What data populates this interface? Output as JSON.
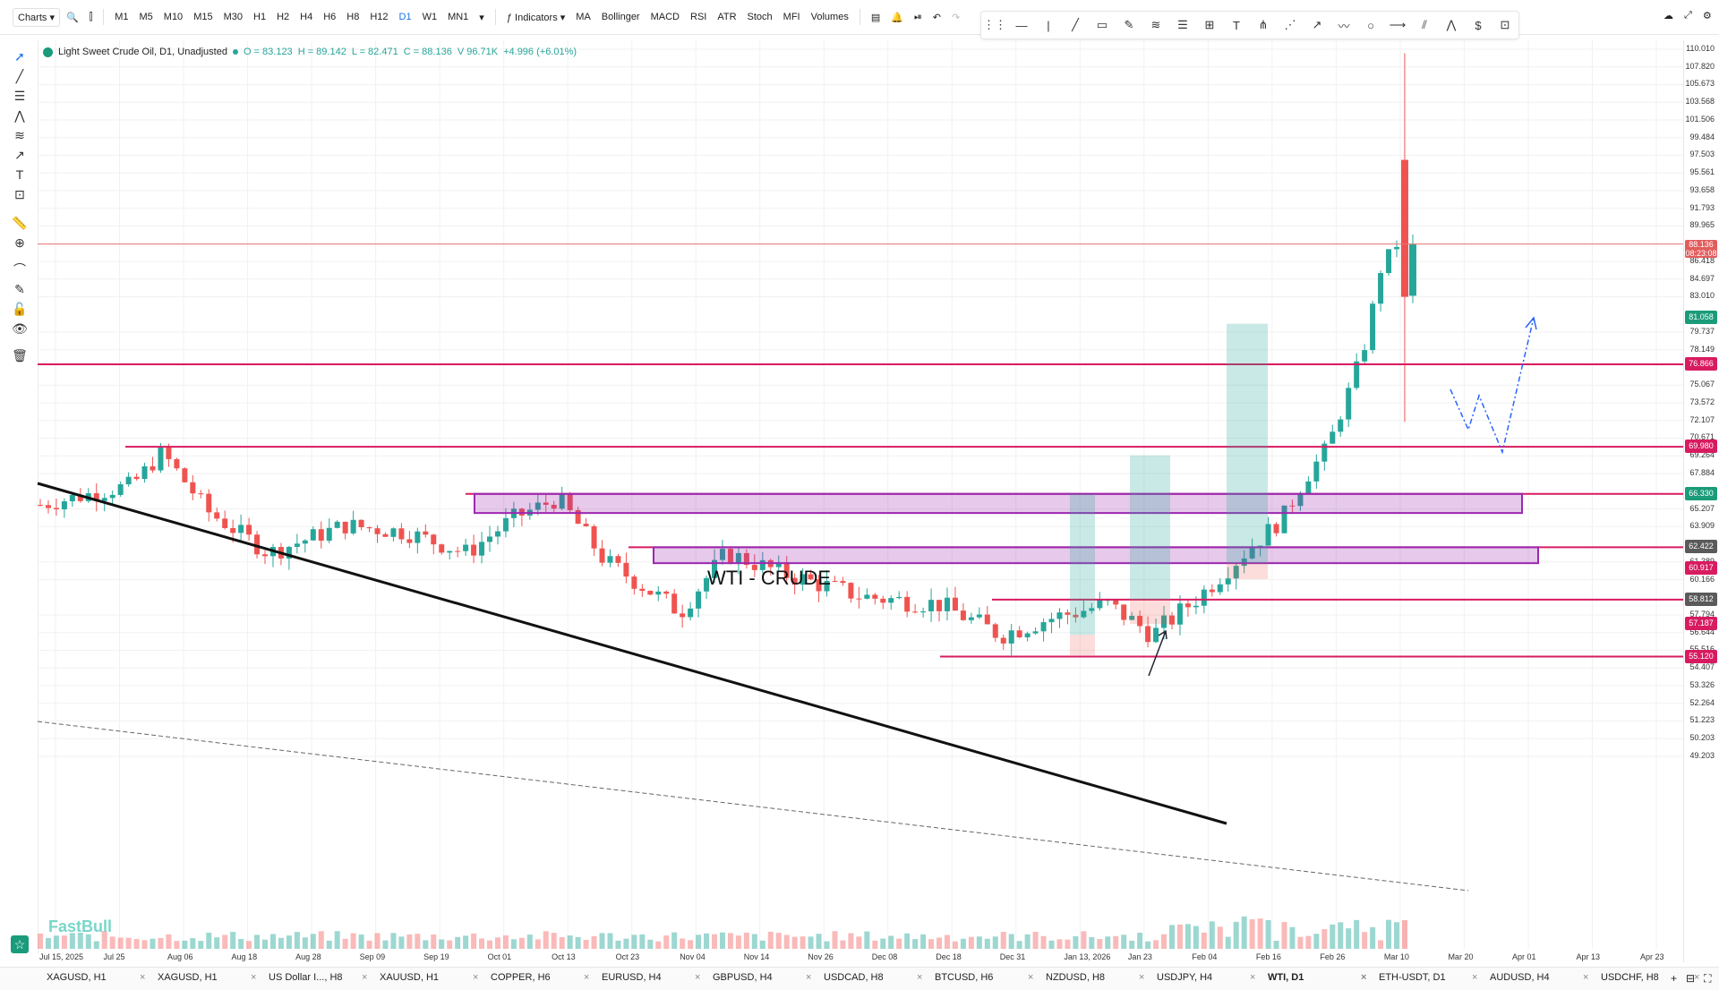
{
  "toolbar": {
    "charts_label": "Charts",
    "timeframes": [
      "M1",
      "M5",
      "M10",
      "M15",
      "M30",
      "H1",
      "H2",
      "H4",
      "H6",
      "H8",
      "H12",
      "D1",
      "W1",
      "MN1"
    ],
    "active_timeframe": "D1",
    "indicators_label": "Indicators",
    "quick_indicators": [
      "MA",
      "Bollinger",
      "MACD",
      "RSI",
      "ATR",
      "Stoch",
      "MFI",
      "Volumes"
    ]
  },
  "legend": {
    "instrument": "Light Sweet Crude Oil, D1, Unadjusted",
    "open": "O = 83.123",
    "high": "H = 89.142",
    "low": "L = 82.471",
    "close": "C = 88.136",
    "volume": "V 96.71K",
    "change": "+4.996 (+6.01%)"
  },
  "chart_title": "WTI - CRUDE",
  "watermark": "FastBull",
  "price_ticks": [
    "110.010",
    "107.820",
    "105.673",
    "103.568",
    "101.506",
    "99.484",
    "97.503",
    "95.561",
    "93.658",
    "91.793",
    "89.965",
    "86.418",
    "84.697",
    "83.010",
    "79.737",
    "78.149",
    "75.067",
    "73.572",
    "72.107",
    "70.671",
    "69.264",
    "67.884",
    "65.207",
    "63.909",
    "61.389",
    "60.166",
    "57.794",
    "56.644",
    "55.516",
    "54.407",
    "53.326",
    "52.264",
    "51.223",
    "50.203",
    "49.203"
  ],
  "price_badges": [
    {
      "value": "88.136",
      "sub": "08:23:08",
      "color": "#e25c5c"
    },
    {
      "value": "81.058",
      "color": "#1a9b7a"
    },
    {
      "value": "76.866",
      "color": "#d81b60"
    },
    {
      "value": "69.980",
      "color": "#d81b60"
    },
    {
      "value": "66.330",
      "color": "#1a9b7a"
    },
    {
      "value": "62.422",
      "color": "#5a5a5a"
    },
    {
      "value": "60.917",
      "color": "#d81b60"
    },
    {
      "value": "58.812",
      "color": "#5a5a5a"
    },
    {
      "value": "57.187",
      "color": "#d81b60"
    },
    {
      "value": "55.120",
      "color": "#d81b60"
    }
  ],
  "time_ticks": [
    "Jul 15, 2025",
    "Jul 25",
    "Aug 06",
    "Aug 18",
    "Aug 28",
    "Sep 09",
    "Sep 19",
    "Oct 01",
    "Oct 13",
    "Oct 23",
    "Nov 04",
    "Nov 14",
    "Nov 26",
    "Dec 08",
    "Dec 18",
    "Dec 31",
    "Jan 13, 2026",
    "Jan 23",
    "Feb 04",
    "Feb 16",
    "Feb 26",
    "Mar 10",
    "Mar 20",
    "Apr 01",
    "Apr 13",
    "Apr 23"
  ],
  "bottom_tabs": [
    "XAGUSD, H1",
    "XAGUSD, H1",
    "US Dollar I..., H8",
    "XAUUSD, H1",
    "COPPER, H6",
    "EURUSD, H4",
    "GBPUSD, H4",
    "USDCAD, H8",
    "BTCUSD, H6",
    "NZDUSD, H8",
    "USDJPY, H4",
    "WTI, D1",
    "ETH-USDT, D1",
    "AUDUSD, H4",
    "USDCHF, H8"
  ],
  "active_tab": "WTI, D1",
  "colors": {
    "up": "#26a69a",
    "down": "#ef5350",
    "level": "#d81b60",
    "zone": "#9c27b0"
  },
  "chart_data": {
    "type": "candlestick",
    "title": "WTI - CRUDE",
    "instrument": "Light Sweet Crude Oil",
    "timeframe": "D1",
    "x_range": [
      "Jul 15, 2025",
      "Apr 23"
    ],
    "y_range": [
      49.203,
      110.01
    ],
    "last_candle": {
      "open": 83.123,
      "high": 89.142,
      "low": 82.471,
      "close": 88.136,
      "volume": "96.71K"
    },
    "horizontal_levels": [
      76.866,
      69.98,
      66.33,
      62.422,
      58.812,
      55.12
    ],
    "zones": [
      {
        "from": 64.9,
        "to": 66.3
      },
      {
        "from": 61.3,
        "to": 62.4
      }
    ],
    "grid": true
  }
}
